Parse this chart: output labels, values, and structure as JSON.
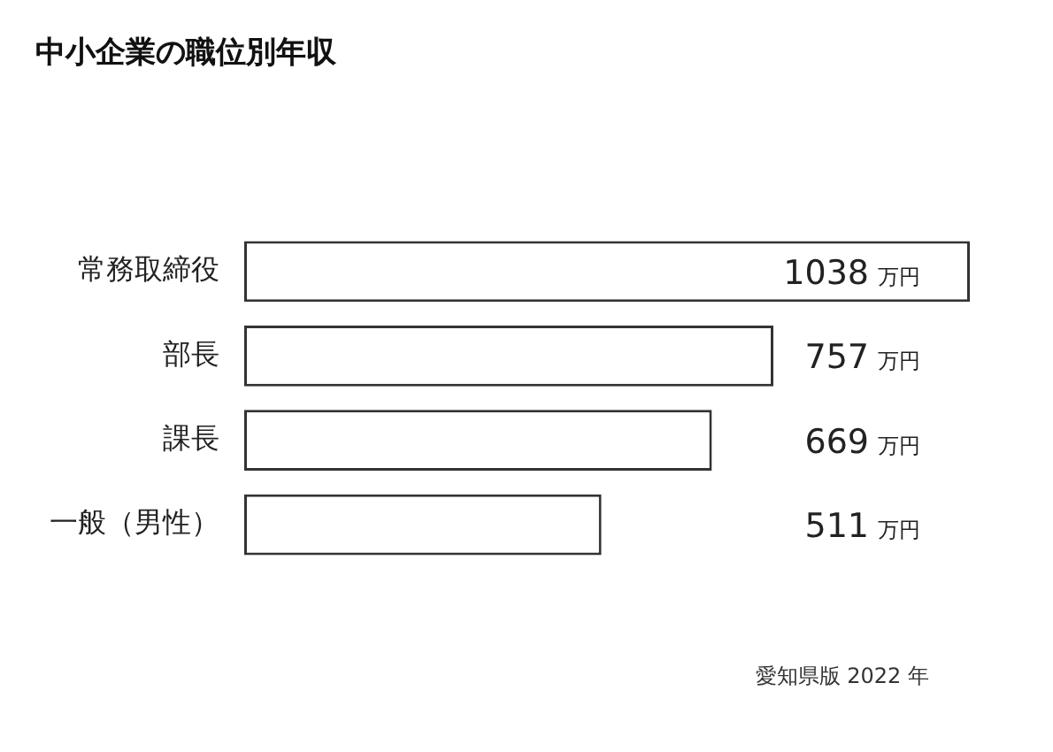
{
  "chart_data": {
    "type": "bar",
    "orientation": "horizontal",
    "title": "中小企業の職位別年収",
    "categories": [
      "常務取締役",
      "部長",
      "課長",
      "一般（男性）"
    ],
    "values": [
      1038,
      757,
      669,
      511
    ],
    "value_labels": [
      "1038 万円",
      "757 万円",
      "669 万円",
      "511 万円"
    ],
    "color": "#ffffff",
    "legend": false,
    "tick_labels": "y",
    "annotations": [
      "愛知県版 2022 年"
    ]
  }
}
